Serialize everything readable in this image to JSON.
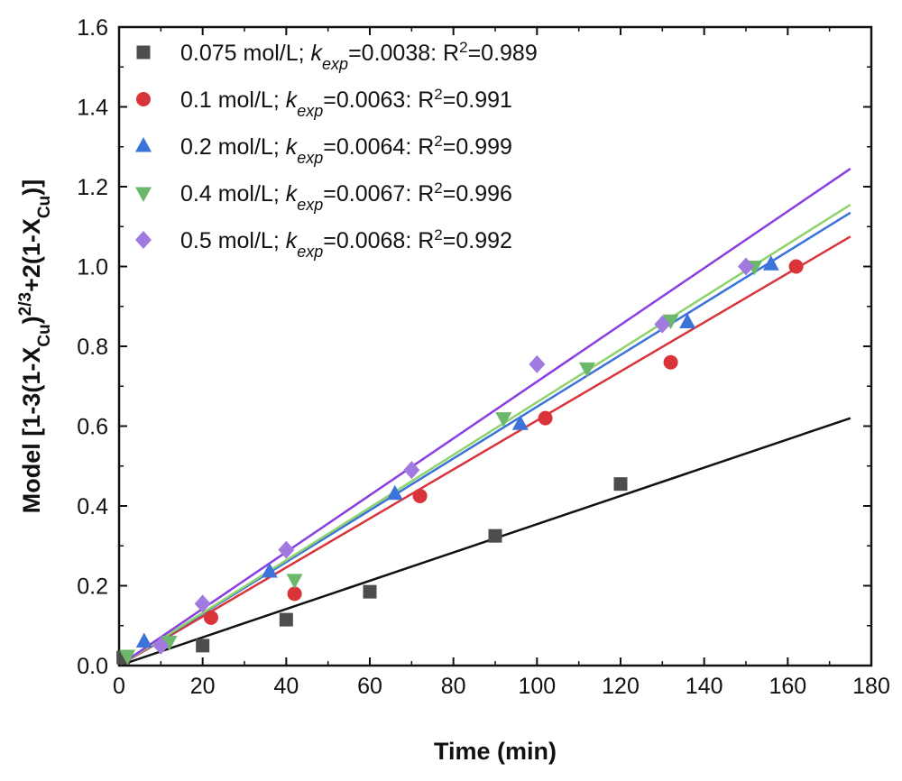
{
  "chart_data": {
    "type": "scatter",
    "xlabel": "Time (min)",
    "ylabel": "Model [1-3(1-X_Cu)^(2/3)+2(1-X_Cu)]",
    "ylabel_parts": {
      "a": "Model [1-3(1-X",
      "b": "Cu",
      "c": ")",
      "d": "2/3",
      "e": "+2(1-X",
      "f": "Cu",
      "g": ")]"
    },
    "xlim": [
      0,
      180
    ],
    "ylim": [
      0,
      1.6
    ],
    "xticks": [
      0,
      20,
      40,
      60,
      80,
      100,
      120,
      140,
      160,
      180
    ],
    "yticks": [
      0.0,
      0.2,
      0.4,
      0.6,
      0.8,
      1.0,
      1.2,
      1.4,
      1.6
    ],
    "ytick_labels": [
      "0.0",
      "0.2",
      "0.4",
      "0.6",
      "0.8",
      "1.0",
      "1.2",
      "1.4",
      "1.6"
    ],
    "grid": false,
    "legend_position": "top-left",
    "legend_labels": {
      "k": "k",
      "exp": "exp",
      "r2": "R",
      "sup2": "2"
    },
    "series": [
      {
        "id": "s0075",
        "conc": "0.075 mol/L; ",
        "kexp": "=0.0038: ",
        "r2": "=0.989",
        "marker": "square",
        "color": "#4d4d4d",
        "line_color": "#111111",
        "fit": {
          "x0": 0,
          "y0": 0.0,
          "x1": 175,
          "y1": 0.62
        },
        "x": [
          1,
          20,
          40,
          60,
          90,
          120
        ],
        "y": [
          0.02,
          0.05,
          0.115,
          0.185,
          0.325,
          0.455
        ]
      },
      {
        "id": "s01",
        "conc": "0.1 mol/L; ",
        "kexp": "=0.0063: ",
        "r2": "=0.991",
        "marker": "circle",
        "color": "#d9343a",
        "line_color": "#d9343a",
        "fit": {
          "x0": 0,
          "y0": 0.0,
          "x1": 175,
          "y1": 1.075
        },
        "x": [
          22,
          42,
          72,
          102,
          132,
          162
        ],
        "y": [
          0.12,
          0.18,
          0.425,
          0.62,
          0.76,
          1.0
        ]
      },
      {
        "id": "s02",
        "conc": "0.2 mol/L; ",
        "kexp": "=0.0064: ",
        "r2": "=0.999",
        "marker": "triangle-up",
        "color": "#3b73d9",
        "line_color": "#3b73d9",
        "fit": {
          "x0": 0,
          "y0": 0.0,
          "x1": 175,
          "y1": 1.135
        },
        "x": [
          6,
          36,
          66,
          96,
          136,
          156
        ],
        "y": [
          0.06,
          0.235,
          0.43,
          0.605,
          0.86,
          1.005
        ]
      },
      {
        "id": "s04",
        "conc": "0.4 mol/L; ",
        "kexp": "=0.0067: ",
        "r2": "=0.996",
        "marker": "triangle-down",
        "color": "#6cb86a",
        "line_color": "#8fd36c",
        "fit": {
          "x0": 0,
          "y0": 0.0,
          "x1": 175,
          "y1": 1.155
        },
        "x": [
          2,
          12,
          42,
          92,
          112,
          132,
          152
        ],
        "y": [
          0.025,
          0.06,
          0.215,
          0.62,
          0.745,
          0.865,
          1.0
        ]
      },
      {
        "id": "s05",
        "conc": "0.5 mol/L; ",
        "kexp": "=0.0068: ",
        "r2": "=0.992",
        "marker": "diamond",
        "color": "#a17ae0",
        "line_color": "#8a3fe0",
        "fit": {
          "x0": 0,
          "y0": 0.0,
          "x1": 175,
          "y1": 1.245
        },
        "x": [
          10,
          20,
          40,
          70,
          100,
          130,
          150
        ],
        "y": [
          0.05,
          0.155,
          0.29,
          0.49,
          0.755,
          0.855,
          1.0
        ]
      }
    ]
  }
}
